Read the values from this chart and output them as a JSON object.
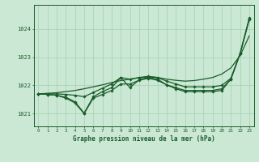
{
  "bg_color": "#cbe8d4",
  "grid_color": "#a8d4b8",
  "line_color": "#1a5c2a",
  "title": "Graphe pression niveau de la mer (hPa)",
  "hours": [
    0,
    1,
    2,
    3,
    4,
    5,
    6,
    7,
    8,
    9,
    10,
    11,
    12,
    13,
    14,
    15,
    16,
    17,
    18,
    19,
    20,
    21,
    22,
    23
  ],
  "ylim": [
    1020.55,
    1024.85
  ],
  "yticks": [
    1021,
    1022,
    1023,
    1024
  ],
  "series": {
    "line_smooth": [
      1021.7,
      1021.72,
      1021.74,
      1021.78,
      1021.82,
      1021.88,
      1021.95,
      1022.02,
      1022.1,
      1022.17,
      1022.22,
      1022.27,
      1022.3,
      1022.28,
      1022.22,
      1022.18,
      1022.15,
      1022.17,
      1022.22,
      1022.28,
      1022.4,
      1022.62,
      1023.05,
      1023.75
    ],
    "line_marked1": [
      1021.7,
      1021.68,
      1021.65,
      1021.58,
      1021.42,
      1021.02,
      1021.6,
      1021.78,
      1021.92,
      1022.28,
      1021.92,
      1022.2,
      1022.28,
      1022.22,
      1022.02,
      1021.92,
      1021.82,
      1021.82,
      1021.82,
      1021.82,
      1021.88,
      1022.22,
      1023.12,
      1024.35
    ],
    "line_marked2": [
      1021.7,
      1021.68,
      1021.65,
      1021.55,
      1021.38,
      1021.0,
      1021.55,
      1021.68,
      1021.82,
      1022.05,
      1022.05,
      1022.18,
      1022.25,
      1022.18,
      1022.02,
      1021.88,
      1021.78,
      1021.78,
      1021.78,
      1021.78,
      1021.82,
      1022.22,
      1023.12,
      1024.32
    ],
    "line_upper": [
      1021.7,
      1021.7,
      1021.7,
      1021.68,
      1021.65,
      1021.6,
      1021.75,
      1021.9,
      1022.05,
      1022.28,
      1022.22,
      1022.28,
      1022.32,
      1022.28,
      1022.15,
      1022.05,
      1021.95,
      1021.95,
      1021.95,
      1021.95,
      1022.0,
      1022.25,
      1023.12,
      1024.38
    ]
  }
}
